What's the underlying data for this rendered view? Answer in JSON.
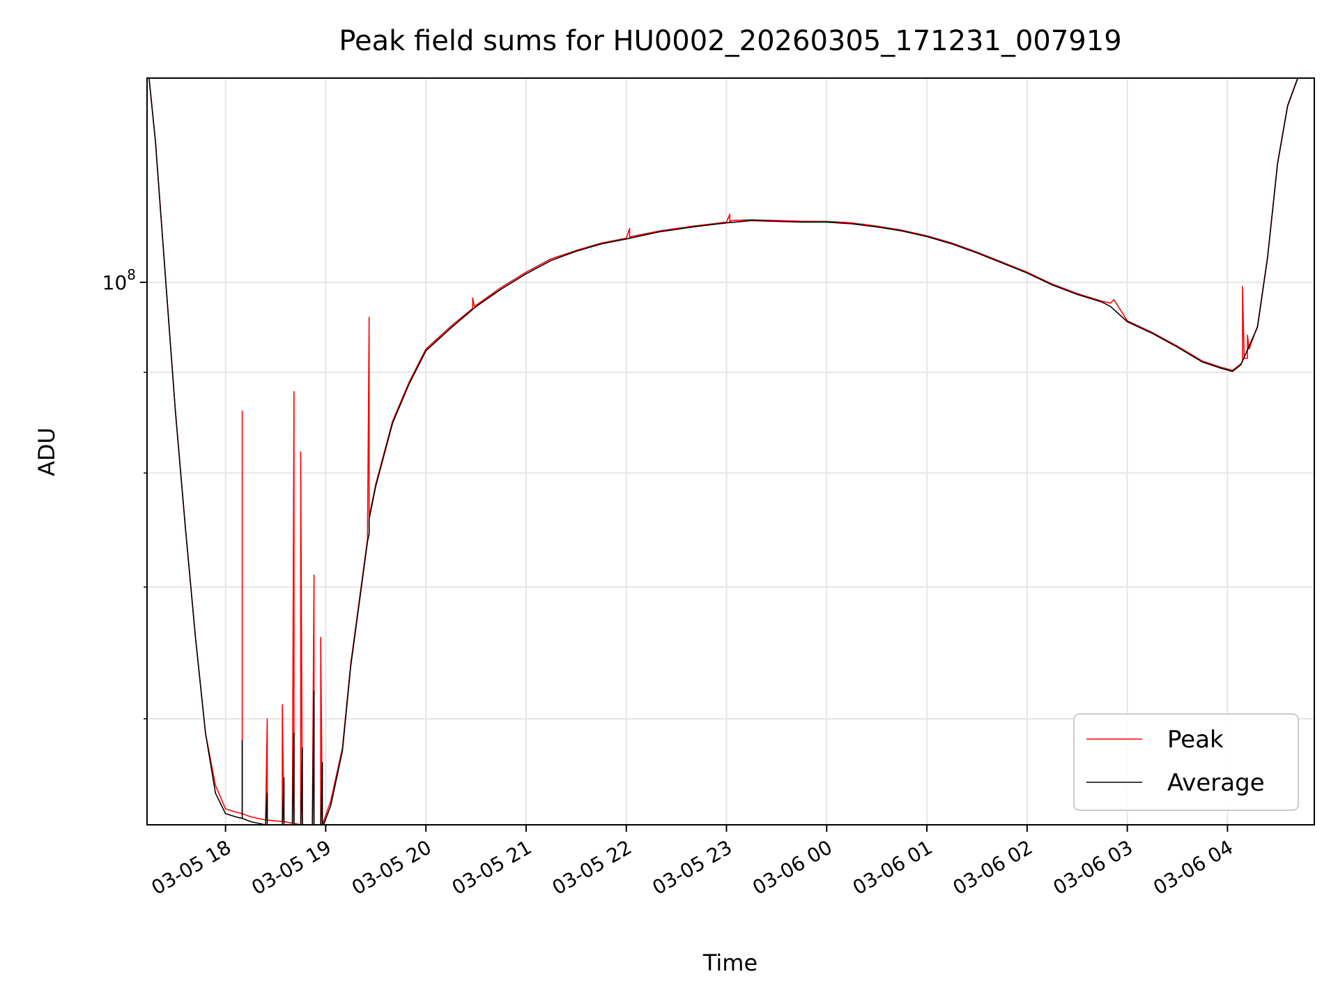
{
  "chart_data": {
    "type": "line",
    "title": "Peak field sums for HU0002_20260305_171231_007919",
    "xlabel": "Time",
    "ylabel": "ADU",
    "y_scale": "log",
    "grid": true,
    "legend_position": "lower-right",
    "xlim": [
      "2026-03-05 17:13",
      "2026-03-06 04:52"
    ],
    "ylim": [
      53000000,
      127000000
    ],
    "x_ticks": [
      {
        "value": "2026-03-05 18:00",
        "label": "03-05 18"
      },
      {
        "value": "2026-03-05 19:00",
        "label": "03-05 19"
      },
      {
        "value": "2026-03-05 20:00",
        "label": "03-05 20"
      },
      {
        "value": "2026-03-05 21:00",
        "label": "03-05 21"
      },
      {
        "value": "2026-03-05 22:00",
        "label": "03-05 22"
      },
      {
        "value": "2026-03-05 23:00",
        "label": "03-05 23"
      },
      {
        "value": "2026-03-06 00:00",
        "label": "03-06 00"
      },
      {
        "value": "2026-03-06 01:00",
        "label": "03-06 01"
      },
      {
        "value": "2026-03-06 02:00",
        "label": "03-06 02"
      },
      {
        "value": "2026-03-06 03:00",
        "label": "03-06 03"
      },
      {
        "value": "2026-03-06 04:00",
        "label": "03-06 04"
      }
    ],
    "y_major_ticks": [
      {
        "value": 100000000,
        "label_base": "10",
        "label_exp": "8"
      }
    ],
    "y_minor_ticks": [
      60000000,
      70000000,
      80000000,
      90000000,
      200000000
    ],
    "series": [
      {
        "name": "Peak",
        "color": "#ff0000",
        "x": [
          "2026-03-05 17:13",
          "2026-03-05 17:18",
          "2026-03-05 17:25",
          "2026-03-05 17:30",
          "2026-03-05 17:36",
          "2026-03-05 17:42",
          "2026-03-05 17:48",
          "2026-03-05 17:54",
          "2026-03-05 18:00",
          "2026-03-05 18:06",
          "2026-03-05 18:10",
          "2026-03-05 18:10",
          "2026-03-05 18:10",
          "2026-03-05 18:15",
          "2026-03-05 18:24",
          "2026-03-05 18:25",
          "2026-03-05 18:25",
          "2026-03-05 18:34",
          "2026-03-05 18:34",
          "2026-03-05 18:35",
          "2026-03-05 18:40",
          "2026-03-05 18:41",
          "2026-03-05 18:41",
          "2026-03-05 18:45",
          "2026-03-05 18:45",
          "2026-03-05 18:46",
          "2026-03-05 18:52",
          "2026-03-05 18:53",
          "2026-03-05 18:53",
          "2026-03-05 18:57",
          "2026-03-05 18:57",
          "2026-03-05 18:58",
          "2026-03-05 19:03",
          "2026-03-05 19:10",
          "2026-03-05 19:15",
          "2026-03-05 19:25",
          "2026-03-05 19:26",
          "2026-03-05 19:26",
          "2026-03-05 19:30",
          "2026-03-05 19:40",
          "2026-03-05 19:50",
          "2026-03-05 20:00",
          "2026-03-05 20:15",
          "2026-03-05 20:28",
          "2026-03-05 20:28",
          "2026-03-05 20:29",
          "2026-03-05 20:45",
          "2026-03-05 21:00",
          "2026-03-05 21:15",
          "2026-03-05 21:30",
          "2026-03-05 21:45",
          "2026-03-05 22:00",
          "2026-03-05 22:02",
          "2026-03-05 22:02",
          "2026-03-05 22:03",
          "2026-03-05 22:20",
          "2026-03-05 22:40",
          "2026-03-05 23:00",
          "2026-03-05 23:02",
          "2026-03-05 23:02",
          "2026-03-05 23:03",
          "2026-03-05 23:15",
          "2026-03-05 23:30",
          "2026-03-05 23:45",
          "2026-03-06 00:00",
          "2026-03-06 00:15",
          "2026-03-06 00:30",
          "2026-03-06 00:45",
          "2026-03-06 01:00",
          "2026-03-06 01:15",
          "2026-03-06 01:30",
          "2026-03-06 01:45",
          "2026-03-06 02:00",
          "2026-03-06 02:15",
          "2026-03-06 02:30",
          "2026-03-06 02:45",
          "2026-03-06 02:50",
          "2026-03-06 02:52",
          "2026-03-06 03:00",
          "2026-03-06 03:15",
          "2026-03-06 03:30",
          "2026-03-06 03:45",
          "2026-03-06 03:55",
          "2026-03-06 04:03",
          "2026-03-06 04:08",
          "2026-03-06 04:09",
          "2026-03-06 04:09",
          "2026-03-06 04:10",
          "2026-03-06 04:12",
          "2026-03-06 04:12",
          "2026-03-06 04:13",
          "2026-03-06 04:18",
          "2026-03-06 04:24",
          "2026-03-06 04:30",
          "2026-03-06 04:36",
          "2026-03-06 04:42",
          "2026-03-06 04:50"
        ],
        "y": [
          130000000,
          118000000,
          98000000,
          86000000,
          75000000,
          66000000,
          59000000,
          55500000,
          54000000,
          53800000,
          53700000,
          86000000,
          53700000,
          53500000,
          53300000,
          60000000,
          53300000,
          53200000,
          61000000,
          53200000,
          53100000,
          88000000,
          53100000,
          53000000,
          82000000,
          53000000,
          53000000,
          71000000,
          53000000,
          53000000,
          66000000,
          53000000,
          54500000,
          58000000,
          64000000,
          74000000,
          96000000,
          76000000,
          79000000,
          85000000,
          89000000,
          92500000,
          95000000,
          97000000,
          98200000,
          97200000,
          99400000,
          101200000,
          102800000,
          103800000,
          104700000,
          105300000,
          106500000,
          105400000,
          105500000,
          106200000,
          106800000,
          107300000,
          108300000,
          107300000,
          107500000,
          107600000,
          107500000,
          107400000,
          107400000,
          107200000,
          106800000,
          106300000,
          105600000,
          104700000,
          103600000,
          102400000,
          101200000,
          99800000,
          98700000,
          97800000,
          97600000,
          98000000,
          95600000,
          94300000,
          92800000,
          91200000,
          90600000,
          90200000,
          90900000,
          91200000,
          99500000,
          91500000,
          91500000,
          94000000,
          92500000,
          95000000,
          103000000,
          115000000,
          123000000,
          127000000,
          128000000
        ]
      },
      {
        "name": "Average",
        "color": "#000000",
        "x": [
          "2026-03-05 17:13",
          "2026-03-05 17:18",
          "2026-03-05 17:25",
          "2026-03-05 17:30",
          "2026-03-05 17:36",
          "2026-03-05 17:42",
          "2026-03-05 17:48",
          "2026-03-05 17:54",
          "2026-03-05 18:00",
          "2026-03-05 18:06",
          "2026-03-05 18:10",
          "2026-03-05 18:10",
          "2026-03-05 18:10",
          "2026-03-05 18:15",
          "2026-03-05 18:24",
          "2026-03-05 18:25",
          "2026-03-05 18:25",
          "2026-03-05 18:34",
          "2026-03-05 18:35",
          "2026-03-05 18:35",
          "2026-03-05 18:40",
          "2026-03-05 18:41",
          "2026-03-05 18:41",
          "2026-03-05 18:45",
          "2026-03-05 18:46",
          "2026-03-05 18:46",
          "2026-03-05 18:52",
          "2026-03-05 18:53",
          "2026-03-05 18:53",
          "2026-03-05 18:57",
          "2026-03-05 18:58",
          "2026-03-05 18:58",
          "2026-03-05 19:03",
          "2026-03-05 19:10",
          "2026-03-05 19:15",
          "2026-03-05 19:25",
          "2026-03-05 19:26",
          "2026-03-05 19:26",
          "2026-03-05 19:30",
          "2026-03-05 19:40",
          "2026-03-05 19:50",
          "2026-03-05 20:00",
          "2026-03-05 20:15",
          "2026-03-05 20:30",
          "2026-03-05 20:45",
          "2026-03-05 21:00",
          "2026-03-05 21:15",
          "2026-03-05 21:30",
          "2026-03-05 21:45",
          "2026-03-05 22:00",
          "2026-03-05 22:20",
          "2026-03-05 22:40",
          "2026-03-05 23:00",
          "2026-03-05 23:15",
          "2026-03-05 23:30",
          "2026-03-05 23:45",
          "2026-03-06 00:00",
          "2026-03-06 00:15",
          "2026-03-06 00:30",
          "2026-03-06 00:45",
          "2026-03-06 01:00",
          "2026-03-06 01:15",
          "2026-03-06 01:30",
          "2026-03-06 01:45",
          "2026-03-06 02:00",
          "2026-03-06 02:15",
          "2026-03-06 02:30",
          "2026-03-06 02:45",
          "2026-03-06 02:50",
          "2026-03-06 03:00",
          "2026-03-06 03:15",
          "2026-03-06 03:30",
          "2026-03-06 03:45",
          "2026-03-06 03:55",
          "2026-03-06 04:03",
          "2026-03-06 04:08",
          "2026-03-06 04:12",
          "2026-03-06 04:18",
          "2026-03-06 04:24",
          "2026-03-06 04:30",
          "2026-03-06 04:36",
          "2026-03-06 04:42",
          "2026-03-06 04:50"
        ],
        "y": [
          130000000,
          118000000,
          98000000,
          86000000,
          75000000,
          66000000,
          59000000,
          55000000,
          53700000,
          53500000,
          53400000,
          58500000,
          53400000,
          53200000,
          53000000,
          55000000,
          53000000,
          52900000,
          56000000,
          52900000,
          52900000,
          59000000,
          52900000,
          52800000,
          58000000,
          52800000,
          52800000,
          62000000,
          52800000,
          52800000,
          57000000,
          52800000,
          54200000,
          57800000,
          63800000,
          73800000,
          74500000,
          75800000,
          78800000,
          84800000,
          88800000,
          92300000,
          94800000,
          97200000,
          99200000,
          101000000,
          102600000,
          103700000,
          104600000,
          105200000,
          106100000,
          106700000,
          107200000,
          107500000,
          107400000,
          107300000,
          107300000,
          107100000,
          106700000,
          106200000,
          105500000,
          104600000,
          103500000,
          102300000,
          101100000,
          99700000,
          98600000,
          97700000,
          97200000,
          95500000,
          94200000,
          92700000,
          91100000,
          90500000,
          90100000,
          90800000,
          92400000,
          94900000,
          102900000,
          114900000,
          122900000,
          126900000,
          127900000
        ]
      }
    ]
  }
}
